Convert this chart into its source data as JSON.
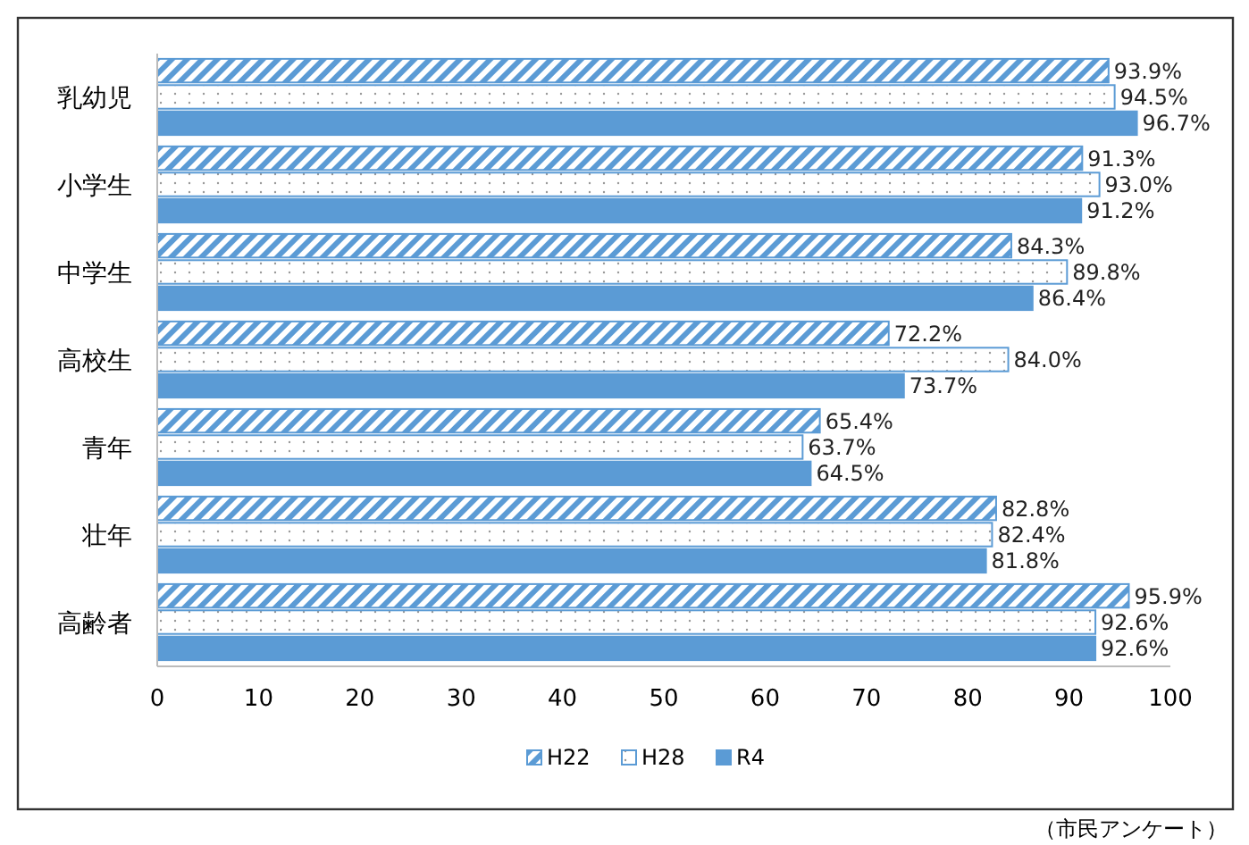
{
  "chart_data": {
    "type": "bar",
    "orientation": "horizontal",
    "categories": [
      "乳幼児",
      "小学生",
      "中学生",
      "高校生",
      "青年",
      "壮年",
      "高齢者"
    ],
    "series": [
      {
        "name": "H22",
        "color": "#5b9bd5",
        "values": [
          93.9,
          91.3,
          84.3,
          72.2,
          65.4,
          82.8,
          95.9
        ]
      },
      {
        "name": "H28",
        "color": "#5b9bd5",
        "values": [
          94.5,
          93.0,
          89.8,
          84.0,
          63.7,
          82.4,
          92.6
        ]
      },
      {
        "name": "R4",
        "color": "#5b9bd5",
        "values": [
          96.7,
          91.2,
          86.4,
          73.7,
          64.5,
          81.8,
          92.6
        ]
      }
    ],
    "xlim": [
      0,
      100
    ],
    "xticks": [
      0,
      10,
      20,
      30,
      40,
      50,
      60,
      70,
      80,
      90,
      100
    ],
    "value_labels": [
      [
        "93.9%",
        "91.3%",
        "84.3%",
        "72.2%",
        "65.4%",
        "82.8%",
        "95.9%"
      ],
      [
        "94.5%",
        "93.0%",
        "89.8%",
        "84.0%",
        "63.7%",
        "82.4%",
        "92.6%"
      ],
      [
        "96.7%",
        "91.2%",
        "86.4%",
        "73.7%",
        "64.5%",
        "81.8%",
        "92.6%"
      ]
    ],
    "legend": "bottom",
    "grid": false,
    "annotations": [
      "（市民アンケート）"
    ]
  }
}
